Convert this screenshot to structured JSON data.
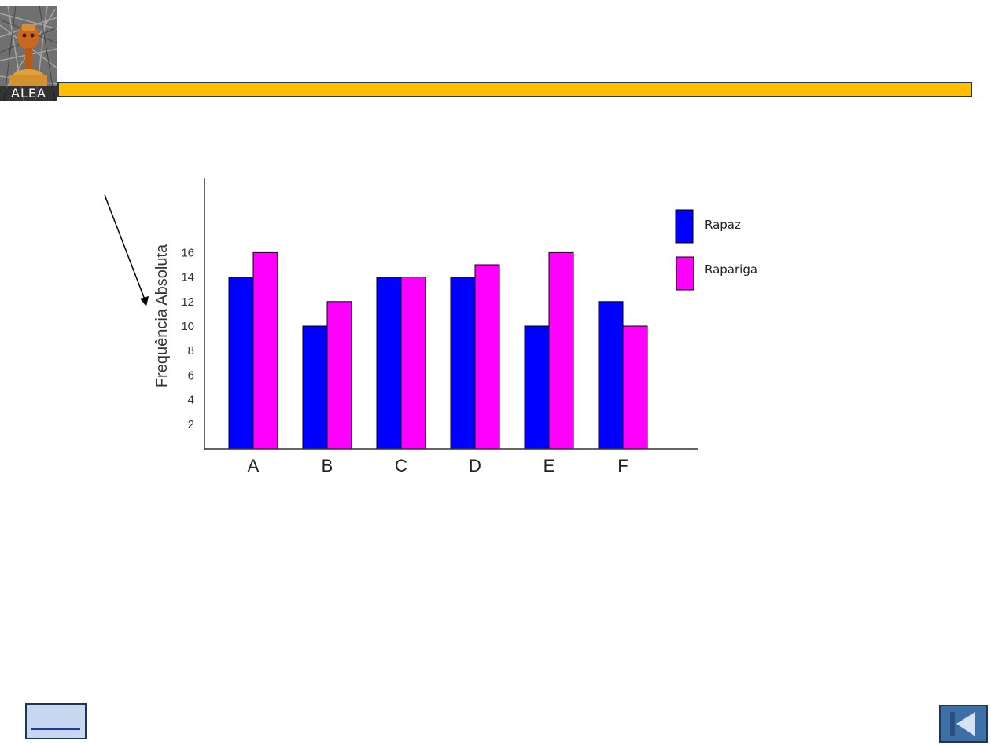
{
  "logo": {
    "text": "ALEA"
  },
  "colors": {
    "title_bar": "#ffbf00",
    "title_bar_border": "#1f3556",
    "rapaz": "#0000ff",
    "rapariga": "#ff00ff",
    "nav_home_bg": "#c7d7ef",
    "nav_first_bg": "#3e6fa6"
  },
  "icons": {
    "annotation_arrow": "arrow-icon",
    "nav_first": "skip-to-first-icon"
  },
  "chart_data": {
    "type": "bar",
    "categories": [
      "A",
      "B",
      "C",
      "D",
      "E",
      "F"
    ],
    "series": [
      {
        "name": "Rapaz",
        "values": [
          14,
          10,
          14,
          14,
          10,
          12
        ]
      },
      {
        "name": "Rapariga",
        "values": [
          16,
          12,
          14,
          15,
          16,
          10
        ]
      }
    ],
    "yticks": [
      2,
      4,
      6,
      8,
      10,
      12,
      14,
      16
    ],
    "ylabel": "Frequência Absoluta",
    "xlabel": "",
    "ylim": [
      0,
      22
    ],
    "grid": false,
    "legend": "right"
  }
}
